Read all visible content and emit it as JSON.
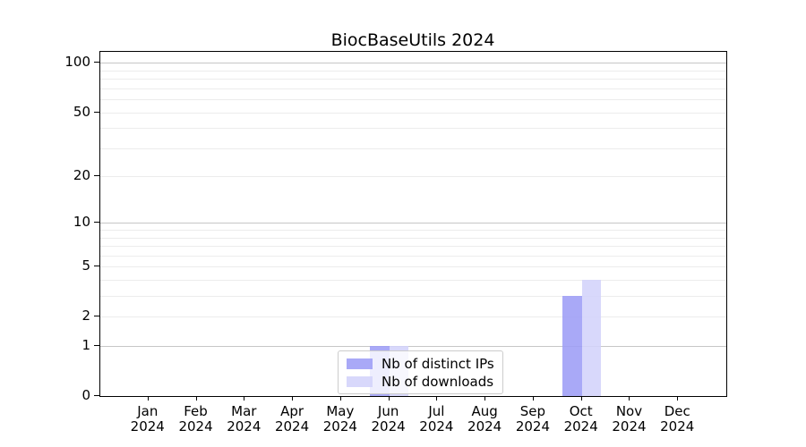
{
  "title": "BiocBaseUtils 2024",
  "chart_data": {
    "type": "bar",
    "title": "BiocBaseUtils 2024",
    "categories": [
      "Jan",
      "Feb",
      "Mar",
      "Apr",
      "May",
      "Jun",
      "Jul",
      "Aug",
      "Sep",
      "Oct",
      "Nov",
      "Dec"
    ],
    "year_label": "2024",
    "series": [
      {
        "name": "Nb of distinct IPs",
        "color": "#9d9df6",
        "values": [
          0,
          0,
          0,
          0,
          0,
          1,
          0,
          0,
          0,
          3,
          0,
          0
        ]
      },
      {
        "name": "Nb of downloads",
        "color": "#d3d3fa",
        "values": [
          0,
          0,
          0,
          0,
          0,
          1,
          0,
          0,
          0,
          4,
          0,
          0
        ]
      }
    ],
    "y_ticks": [
      0,
      1,
      2,
      5,
      10,
      20,
      50,
      100
    ],
    "grid_major": [
      1,
      10,
      100
    ],
    "grid_minor": [
      2,
      3,
      4,
      5,
      6,
      7,
      8,
      9,
      20,
      30,
      40,
      50,
      60,
      70,
      80,
      90
    ],
    "scale": "log1p",
    "ylim": [
      0,
      116.9
    ],
    "grid": "on",
    "legend_position": "lower center"
  }
}
